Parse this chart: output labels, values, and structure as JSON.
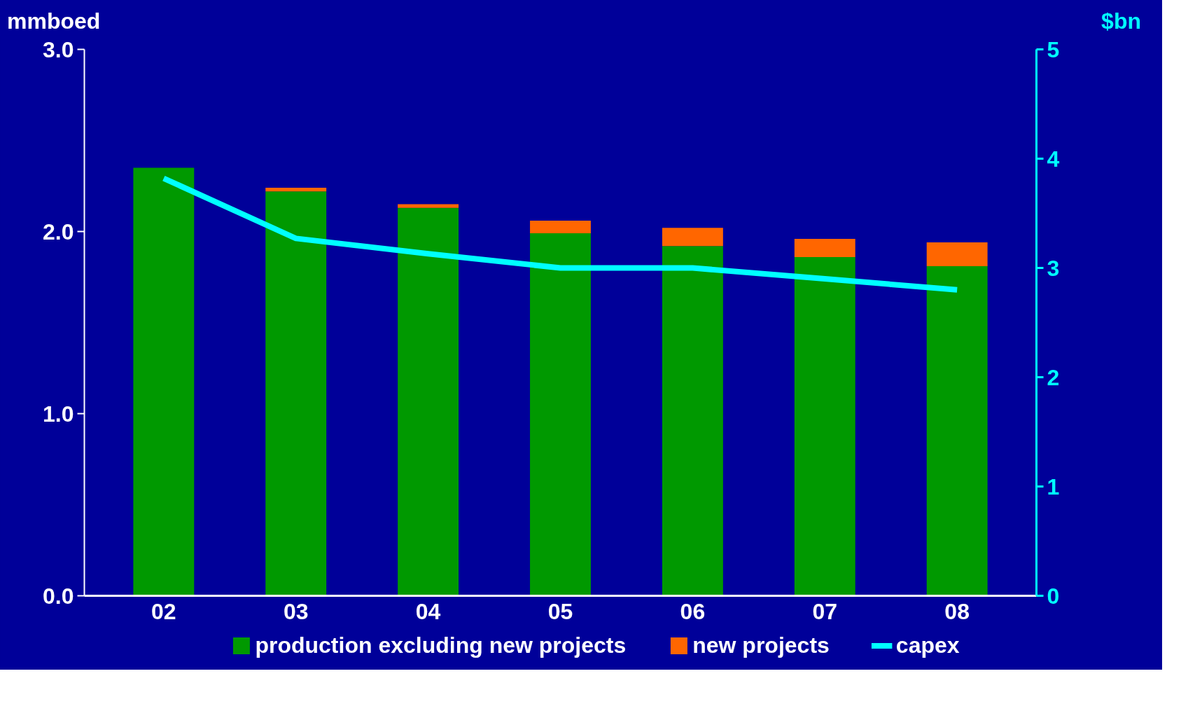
{
  "chart_data": {
    "type": "bar",
    "stacked": true,
    "categories": [
      "02",
      "03",
      "04",
      "05",
      "06",
      "07",
      "08"
    ],
    "ylabel": "mmboed",
    "y2label": "$bn",
    "ylim": [
      0,
      3.0
    ],
    "yticks": [
      {
        "value": 0,
        "label": "0.0"
      },
      {
        "value": 1,
        "label": "1.0"
      },
      {
        "value": 2,
        "label": "2.0"
      },
      {
        "value": 3,
        "label": "3.0"
      }
    ],
    "y2lim": [
      0,
      5
    ],
    "y2ticks": [
      0,
      1,
      2,
      3,
      4,
      5
    ],
    "series": [
      {
        "name": "production excluding new projects",
        "color": "#009900",
        "values": [
          2.35,
          2.22,
          2.13,
          1.99,
          1.92,
          1.86,
          1.81
        ]
      },
      {
        "name": "new projects",
        "color": "#ff6600",
        "values": [
          0,
          0.02,
          0.02,
          0.07,
          0.1,
          0.1,
          0.13
        ]
      },
      {
        "name": "capex",
        "type": "line",
        "axis": "y2",
        "color": "#00ffff",
        "values": [
          3.82,
          3.27,
          3.13,
          3.0,
          3.0,
          2.9,
          2.8
        ]
      }
    ],
    "legend": "bottom",
    "grid": false
  }
}
